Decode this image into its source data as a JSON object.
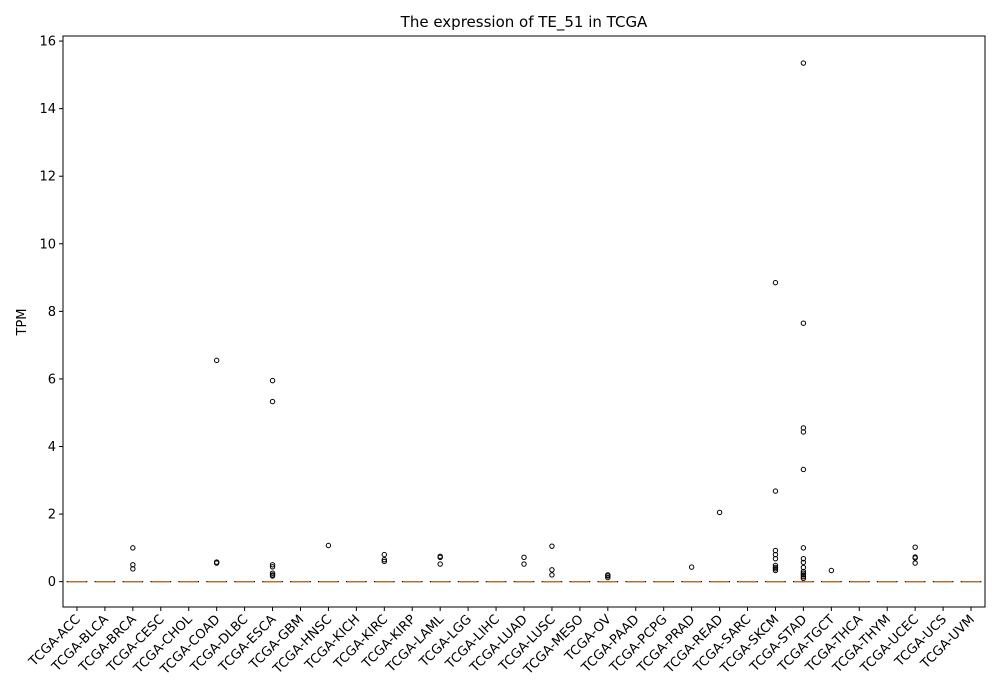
{
  "chart_data": {
    "type": "box",
    "title": "The expression of TE_51 in TCGA",
    "xlabel": "",
    "ylabel": "TPM",
    "ylim": [
      -0.75,
      16.15
    ],
    "yticks": [
      0,
      2,
      4,
      6,
      8,
      10,
      12,
      14,
      16
    ],
    "grid": false,
    "categories": [
      "TCGA-ACC",
      "TCGA-BLCA",
      "TCGA-BRCA",
      "TCGA-CESC",
      "TCGA-CHOL",
      "TCGA-COAD",
      "TCGA-DLBC",
      "TCGA-ESCA",
      "TCGA-GBM",
      "TCGA-HNSC",
      "TCGA-KICH",
      "TCGA-KIRC",
      "TCGA-KIRP",
      "TCGA-LAML",
      "TCGA-LGG",
      "TCGA-LIHC",
      "TCGA-LUAD",
      "TCGA-LUSC",
      "TCGA-MESO",
      "TCGA-OV",
      "TCGA-PAAD",
      "TCGA-PCPG",
      "TCGA-PRAD",
      "TCGA-READ",
      "TCGA-SARC",
      "TCGA-SKCM",
      "TCGA-STAD",
      "TCGA-TGCT",
      "TCGA-THCA",
      "TCGA-THYM",
      "TCGA-UCEC",
      "TCGA-UCS",
      "TCGA-UVM"
    ],
    "medians": [
      0,
      0,
      0,
      0,
      0,
      0,
      0,
      0,
      0,
      0,
      0,
      0,
      0,
      0,
      0,
      0,
      0,
      0,
      0,
      0,
      0,
      0,
      0,
      0,
      0,
      0,
      0,
      0,
      0,
      0,
      0,
      0,
      0
    ],
    "outliers": [
      [],
      [],
      [
        1.0,
        0.5,
        0.38
      ],
      [],
      [],
      [
        6.55,
        0.58,
        0.55
      ],
      [],
      [
        5.95,
        5.33,
        0.5,
        0.44,
        0.25,
        0.2,
        0.17
      ],
      [],
      [
        1.07
      ],
      [],
      [
        0.8,
        0.65,
        0.6
      ],
      [],
      [
        0.75,
        0.72,
        0.52
      ],
      [],
      [],
      [
        0.72,
        0.52
      ],
      [
        1.05,
        0.35,
        0.2
      ],
      [],
      [
        0.2,
        0.17,
        0.12
      ],
      [],
      [],
      [
        0.43
      ],
      [
        2.05
      ],
      [],
      [
        8.85,
        2.68,
        0.92,
        0.8,
        0.68,
        0.48,
        0.42,
        0.38,
        0.33
      ],
      [
        15.35,
        7.65,
        4.55,
        4.43,
        3.32,
        1.0,
        0.68,
        0.57,
        0.42,
        0.3,
        0.25,
        0.2,
        0.15,
        0.1
      ],
      [
        0.33
      ],
      [],
      [],
      [
        1.02,
        0.73,
        0.7,
        0.55
      ],
      [],
      []
    ]
  }
}
